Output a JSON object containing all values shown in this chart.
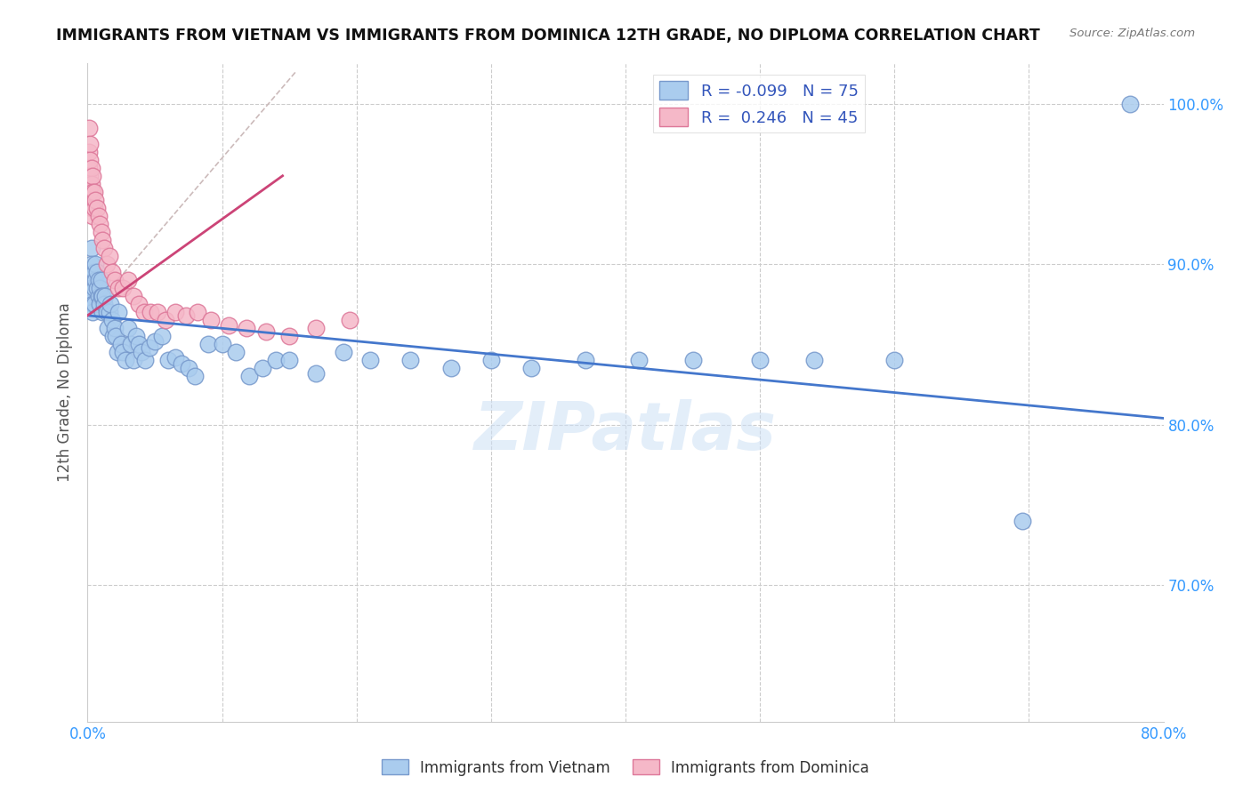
{
  "title": "IMMIGRANTS FROM VIETNAM VS IMMIGRANTS FROM DOMINICA 12TH GRADE, NO DIPLOMA CORRELATION CHART",
  "source": "Source: ZipAtlas.com",
  "ylabel": "12th Grade, No Diploma",
  "xlim": [
    0.0,
    0.8
  ],
  "ylim": [
    0.615,
    1.025
  ],
  "xtick_positions": [
    0.0,
    0.1,
    0.2,
    0.3,
    0.4,
    0.5,
    0.6,
    0.7,
    0.8
  ],
  "xticklabels": [
    "0.0%",
    "",
    "",
    "",
    "",
    "",
    "",
    "",
    "80.0%"
  ],
  "ytick_positions": [
    0.7,
    0.8,
    0.9,
    1.0
  ],
  "yticklabels": [
    "70.0%",
    "80.0%",
    "90.0%",
    "100.0%"
  ],
  "grid_color": "#cccccc",
  "background_color": "#ffffff",
  "vietnam_color": "#aaccee",
  "vietnam_edge_color": "#7799cc",
  "dominica_color": "#f5b8c8",
  "dominica_edge_color": "#dd7799",
  "blue_line_color": "#4477cc",
  "pink_line_color": "#cc4477",
  "dashed_line_color": "#ccbbbb",
  "watermark": "ZIPatlas",
  "blue_line_x": [
    0.0,
    0.8
  ],
  "blue_line_y": [
    0.868,
    0.804
  ],
  "pink_line_x": [
    0.0,
    0.145
  ],
  "pink_line_y": [
    0.868,
    0.955
  ],
  "dashed_line_x": [
    0.0,
    0.155
  ],
  "dashed_line_y": [
    0.868,
    1.02
  ],
  "vietnam_x": [
    0.002,
    0.002,
    0.003,
    0.003,
    0.003,
    0.004,
    0.004,
    0.004,
    0.005,
    0.005,
    0.005,
    0.006,
    0.006,
    0.007,
    0.007,
    0.008,
    0.008,
    0.009,
    0.009,
    0.01,
    0.01,
    0.011,
    0.011,
    0.012,
    0.013,
    0.014,
    0.015,
    0.016,
    0.017,
    0.018,
    0.019,
    0.02,
    0.021,
    0.022,
    0.023,
    0.025,
    0.026,
    0.028,
    0.03,
    0.032,
    0.034,
    0.036,
    0.038,
    0.04,
    0.043,
    0.046,
    0.05,
    0.055,
    0.06,
    0.065,
    0.07,
    0.075,
    0.08,
    0.09,
    0.1,
    0.11,
    0.12,
    0.13,
    0.14,
    0.15,
    0.17,
    0.19,
    0.21,
    0.24,
    0.27,
    0.3,
    0.33,
    0.37,
    0.41,
    0.45,
    0.5,
    0.54,
    0.6,
    0.695,
    0.775
  ],
  "vietnam_y": [
    0.88,
    0.895,
    0.91,
    0.9,
    0.885,
    0.88,
    0.875,
    0.87,
    0.895,
    0.885,
    0.875,
    0.9,
    0.89,
    0.895,
    0.885,
    0.89,
    0.88,
    0.885,
    0.875,
    0.89,
    0.88,
    0.88,
    0.87,
    0.875,
    0.88,
    0.87,
    0.86,
    0.87,
    0.875,
    0.865,
    0.855,
    0.86,
    0.855,
    0.845,
    0.87,
    0.85,
    0.845,
    0.84,
    0.86,
    0.85,
    0.84,
    0.855,
    0.85,
    0.845,
    0.84,
    0.848,
    0.852,
    0.855,
    0.84,
    0.842,
    0.838,
    0.835,
    0.83,
    0.85,
    0.85,
    0.845,
    0.83,
    0.835,
    0.84,
    0.84,
    0.832,
    0.845,
    0.84,
    0.84,
    0.835,
    0.84,
    0.835,
    0.84,
    0.84,
    0.84,
    0.84,
    0.84,
    0.84,
    0.74,
    1.0
  ],
  "dominica_x": [
    0.001,
    0.001,
    0.001,
    0.002,
    0.002,
    0.002,
    0.002,
    0.003,
    0.003,
    0.003,
    0.004,
    0.004,
    0.004,
    0.005,
    0.005,
    0.006,
    0.007,
    0.008,
    0.009,
    0.01,
    0.011,
    0.012,
    0.014,
    0.016,
    0.018,
    0.02,
    0.023,
    0.026,
    0.03,
    0.034,
    0.038,
    0.042,
    0.047,
    0.052,
    0.058,
    0.065,
    0.073,
    0.082,
    0.092,
    0.105,
    0.118,
    0.133,
    0.15,
    0.17,
    0.195
  ],
  "dominica_y": [
    0.985,
    0.97,
    0.96,
    0.975,
    0.965,
    0.955,
    0.945,
    0.96,
    0.95,
    0.935,
    0.955,
    0.945,
    0.93,
    0.945,
    0.935,
    0.94,
    0.935,
    0.93,
    0.925,
    0.92,
    0.915,
    0.91,
    0.9,
    0.905,
    0.895,
    0.89,
    0.885,
    0.885,
    0.89,
    0.88,
    0.875,
    0.87,
    0.87,
    0.87,
    0.865,
    0.87,
    0.868,
    0.87,
    0.865,
    0.862,
    0.86,
    0.858,
    0.855,
    0.86,
    0.865
  ]
}
